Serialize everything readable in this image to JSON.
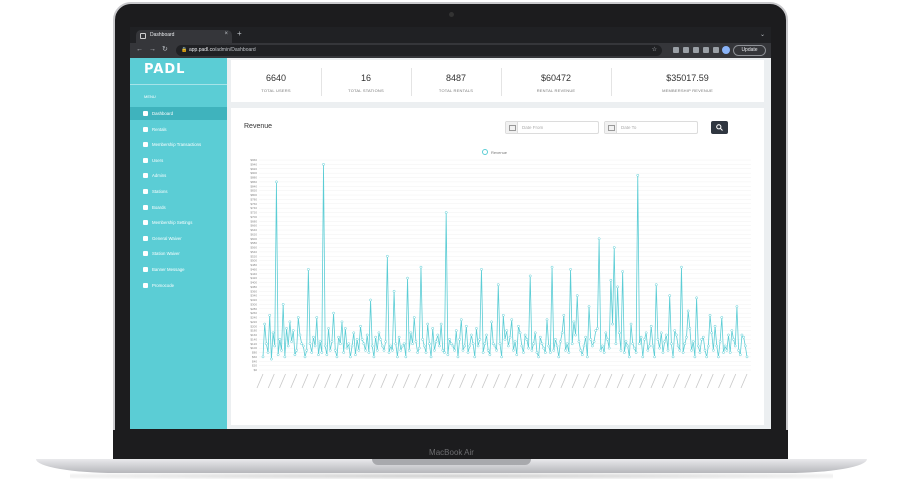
{
  "device": {
    "brand_label": "MacBook Air"
  },
  "browser": {
    "tab_title": "Dashboard",
    "tab_close": "×",
    "new_tab": "+",
    "chevron": "⌄",
    "url_host": "app.padl.co",
    "url_path": "/admin/Dashboard",
    "update_label": "Update",
    "nav": {
      "back": "←",
      "forward": "→",
      "reload": "↻"
    },
    "lock": "🔒",
    "star": "☆"
  },
  "sidebar": {
    "logo": "PADL",
    "menu_label": "MENU",
    "items": [
      {
        "label": "Dashboard",
        "icon": "dashboard-icon",
        "active": true
      },
      {
        "label": "Rentals",
        "icon": "rentals-icon"
      },
      {
        "label": "Membership Transactions",
        "icon": "card-icon"
      },
      {
        "label": "Users",
        "icon": "users-icon"
      },
      {
        "label": "Admins",
        "icon": "admin-icon"
      },
      {
        "label": "Stations",
        "icon": "station-icon"
      },
      {
        "label": "Boards",
        "icon": "board-icon"
      },
      {
        "label": "Membership Settings",
        "icon": "settings-icon"
      },
      {
        "label": "General Waiver",
        "icon": "waiver-icon"
      },
      {
        "label": "Station Waiver",
        "icon": "waiver-icon"
      },
      {
        "label": "Banner Message",
        "icon": "banner-icon"
      },
      {
        "label": "Promocode",
        "icon": "promo-icon"
      }
    ]
  },
  "stats": [
    {
      "value": "6640",
      "label": "TOTAL USERS"
    },
    {
      "value": "16",
      "label": "TOTAL STATIONS"
    },
    {
      "value": "8487",
      "label": "TOTAL RENTALS"
    },
    {
      "value": "$60472",
      "label": "RENTAL REVENUE"
    },
    {
      "value": "$35017.59",
      "label": "MEMBERSHIP REVENUE"
    }
  ],
  "revenue": {
    "title": "Revenue",
    "date_from_placeholder": "Date From",
    "date_to_placeholder": "Date To"
  },
  "colors": {
    "accent": "#5bcdd5",
    "accent_dark": "#3fb3bd",
    "button_dark": "#2f3640"
  },
  "chart_data": {
    "type": "line",
    "legend": [
      "Revenue"
    ],
    "legend_position": "top-center",
    "ylim": [
      0,
      960
    ],
    "y_ticks": [
      "$0",
      "$20",
      "$40",
      "$60",
      "$80",
      "$100",
      "$120",
      "$140",
      "$160",
      "$180",
      "$200",
      "$220",
      "$240",
      "$260",
      "$280",
      "$300",
      "$320",
      "$340",
      "$360",
      "$380",
      "$400",
      "$420",
      "$440",
      "$460",
      "$480",
      "$500",
      "$520",
      "$540",
      "$560",
      "$580",
      "$600",
      "$620",
      "$640",
      "$660",
      "$680",
      "$700",
      "$720",
      "$740",
      "$760",
      "$780",
      "$800",
      "$820",
      "$840",
      "$860",
      "$880",
      "$900",
      "$920",
      "$940",
      "$960"
    ],
    "x_tick_count": 44,
    "grid": true,
    "series": [
      {
        "name": "Revenue",
        "values": [
          60,
          210,
          120,
          80,
          250,
          50,
          170,
          110,
          860,
          70,
          140,
          90,
          300,
          60,
          190,
          110,
          220,
          130,
          180,
          70,
          90,
          240,
          160,
          120,
          110,
          60,
          90,
          460,
          120,
          80,
          150,
          110,
          240,
          70,
          130,
          80,
          940,
          110,
          70,
          190,
          90,
          130,
          260,
          90,
          60,
          150,
          120,
          220,
          80,
          190,
          100,
          120,
          60,
          110,
          170,
          70,
          140,
          90,
          200,
          140,
          120,
          90,
          160,
          80,
          320,
          110,
          60,
          150,
          90,
          170,
          140,
          110,
          90,
          130,
          520,
          80,
          110,
          90,
          360,
          120,
          60,
          150,
          90,
          110,
          120,
          60,
          420,
          90,
          170,
          120,
          240,
          130,
          80,
          100,
          470,
          140,
          110,
          80,
          210,
          120,
          60,
          190,
          90,
          130,
          160,
          110,
          210,
          90,
          80,
          720,
          70,
          140,
          120,
          110,
          90,
          180,
          60,
          140,
          230,
          90,
          110,
          200,
          80,
          110,
          160,
          120,
          60,
          190,
          110,
          140,
          460,
          80,
          120,
          160,
          90,
          70,
          220,
          120,
          110,
          90,
          390,
          120,
          60,
          250,
          140,
          180,
          110,
          150,
          230,
          90,
          130,
          70,
          200,
          170,
          110,
          80,
          160,
          140,
          100,
          430,
          90,
          120,
          170,
          80,
          60,
          150,
          120,
          100,
          80,
          230,
          110,
          80,
          470,
          90,
          140,
          110,
          60,
          130,
          170,
          250,
          90,
          120,
          80,
          460,
          120,
          220,
          160,
          340,
          130,
          90,
          70,
          110,
          150,
          60,
          290,
          140,
          110,
          130,
          180,
          190,
          600,
          90,
          110,
          80,
          170,
          140,
          100,
          410,
          210,
          560,
          120,
          380,
          170,
          90,
          450,
          80,
          130,
          110,
          60,
          210,
          120,
          100,
          80,
          890,
          120,
          150,
          60,
          140,
          170,
          90,
          110,
          200,
          110,
          60,
          390,
          140,
          100,
          170,
          80,
          130,
          160,
          90,
          340,
          120,
          60,
          180,
          160,
          110,
          90,
          470,
          80,
          120,
          150,
          270,
          190,
          90,
          130,
          60,
          330,
          110,
          80,
          140,
          150,
          90,
          60,
          110,
          250,
          170,
          90,
          200,
          110,
          60,
          130,
          240,
          80,
          110,
          90,
          160,
          80,
          180,
          140,
          110,
          290,
          90,
          70,
          160,
          150,
          110,
          60
        ]
      }
    ]
  }
}
